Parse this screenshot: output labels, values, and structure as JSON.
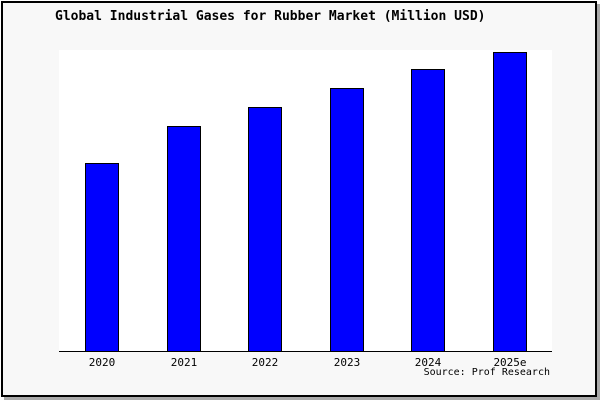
{
  "chart_data": {
    "type": "bar",
    "title": "Global Industrial Gases for Rubber Market (Million USD)",
    "categories": [
      "2020",
      "2021",
      "2022",
      "2023",
      "2024",
      "2025e"
    ],
    "values": [
      62.6,
      74.9,
      81.2,
      87.5,
      93.7,
      99.5
    ],
    "xlabel": "",
    "ylabel": "",
    "ylim": [
      0,
      100
    ],
    "y_axis_visible": false,
    "grid": false,
    "legend": false,
    "colors": {
      "bar_fill": "#0000ff",
      "bar_edge": "#000000",
      "plot_bg": "#ffffff",
      "figure_bg": "#f8f8f8",
      "axis": "#000000"
    }
  },
  "source": {
    "text": "Source: Prof Research"
  }
}
